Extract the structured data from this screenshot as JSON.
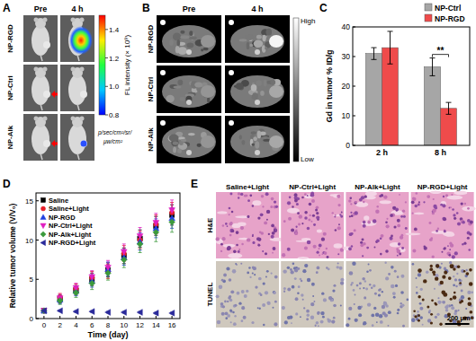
{
  "panel_labels": [
    "A",
    "B",
    "C",
    "D",
    "E"
  ],
  "panel_a": {
    "columns": [
      "Pre",
      "4 h"
    ],
    "rows": [
      "NP-RGD",
      "NP-Ctrl",
      "NP-Alk"
    ],
    "colorbar": {
      "title": "FL intensity (× 10⁹)",
      "units": [
        "p/sec/cm²/sr/",
        "μw/cm²"
      ],
      "range": [
        0.8,
        1.5
      ],
      "ticks": [
        0.8,
        {
          "value": 1.0,
          "label": "1.0"
        },
        1.2,
        1.4
      ]
    }
  },
  "panel_b": {
    "columns": [
      "Pre",
      "4 h"
    ],
    "rows": [
      "NP-RGD",
      "NP-Ctrl",
      "NP-Alk"
    ],
    "scale_labels": [
      "High",
      "Low"
    ]
  },
  "panel_e": {
    "columns": [
      "Saline+Light",
      "NP-Ctrl+Light",
      "NP-Alk+Light",
      "NP-RGD+Light"
    ],
    "rows": [
      "H&E",
      "TUNEL"
    ],
    "scale_bar": "200 μm"
  },
  "chart_data": [
    {
      "type": "bar",
      "y_label": "Gd in tumor % ID/g",
      "categories": [
        "2 h",
        "8 h"
      ],
      "series": [
        {
          "name": "NP-Ctrl",
          "color": "#a6a6a6",
          "values": [
            31,
            26.5
          ],
          "errors": [
            2,
            3
          ]
        },
        {
          "name": "NP-RGD",
          "color": "#ef4b4b",
          "values": [
            33,
            12.5
          ],
          "errors": [
            5.5,
            2
          ]
        }
      ],
      "ylim": [
        0,
        40
      ],
      "yticks": [
        0,
        10,
        20,
        30,
        40
      ],
      "grid": false,
      "legend": "upper right",
      "annotations": [
        {
          "text": "**",
          "category": "8 h"
        }
      ]
    },
    {
      "type": "scatter",
      "x_label": "Time (day)",
      "y_label": "Relative tumor volume (V/V₀)",
      "x": [
        0,
        2,
        4,
        6,
        8,
        10,
        12,
        14,
        16
      ],
      "xlim": [
        -1,
        17
      ],
      "xticks": [
        0,
        2,
        4,
        6,
        8,
        10,
        12,
        14,
        16
      ],
      "ylim": [
        0,
        16
      ],
      "yticks": [
        0,
        5,
        10,
        15
      ],
      "grid": false,
      "legend": "upper left",
      "series": [
        {
          "name": "Saline",
          "color": "#000000",
          "marker": "square",
          "values": [
            1,
            2.5,
            3.6,
            5.0,
            6.2,
            8.0,
            10.2,
            11.8,
            13.2
          ],
          "errors": [
            0.2,
            0.5,
            0.6,
            0.8,
            0.9,
            1.0,
            1.1,
            1.2,
            1.3
          ]
        },
        {
          "name": "Saline+Light",
          "color": "#e8202a",
          "marker": "circle",
          "values": [
            1,
            2.7,
            3.8,
            5.2,
            6.0,
            8.3,
            10.0,
            12.0,
            13.5
          ],
          "errors": [
            0.2,
            0.5,
            0.6,
            0.8,
            0.9,
            1.0,
            1.1,
            1.2,
            1.3
          ]
        },
        {
          "name": "NP-RGD",
          "color": "#2040e0",
          "marker": "triangle",
          "values": [
            1,
            2.4,
            3.5,
            4.8,
            6.3,
            7.8,
            9.8,
            11.5,
            12.8
          ],
          "errors": [
            0.2,
            0.5,
            0.6,
            0.8,
            0.9,
            1.0,
            1.1,
            1.2,
            1.3
          ]
        },
        {
          "name": "NP-Ctrl+Light",
          "color": "#e020c0",
          "marker": "triangle-down",
          "values": [
            1,
            2.6,
            3.9,
            5.3,
            6.5,
            8.5,
            10.5,
            12.2,
            13.8
          ],
          "errors": [
            0.2,
            0.5,
            0.6,
            0.8,
            0.9,
            1.0,
            1.1,
            1.2,
            1.3
          ]
        },
        {
          "name": "NP-Alk+Light",
          "color": "#3c9a3c",
          "marker": "diamond",
          "values": [
            1,
            2.3,
            3.3,
            4.5,
            5.8,
            7.5,
            9.5,
            11.0,
            12.3
          ],
          "errors": [
            0.2,
            0.5,
            0.6,
            0.8,
            0.9,
            1.0,
            1.1,
            1.2,
            1.3
          ]
        },
        {
          "name": "NP-RGD+Light",
          "color": "#2a2a9a",
          "marker": "triangle-left",
          "values": [
            1,
            1.0,
            0.9,
            0.9,
            0.8,
            0.8,
            0.8,
            0.7,
            0.7
          ],
          "errors": [
            0.1,
            0.1,
            0.1,
            0.1,
            0.1,
            0.1,
            0.1,
            0.1,
            0.1
          ]
        }
      ]
    }
  ]
}
